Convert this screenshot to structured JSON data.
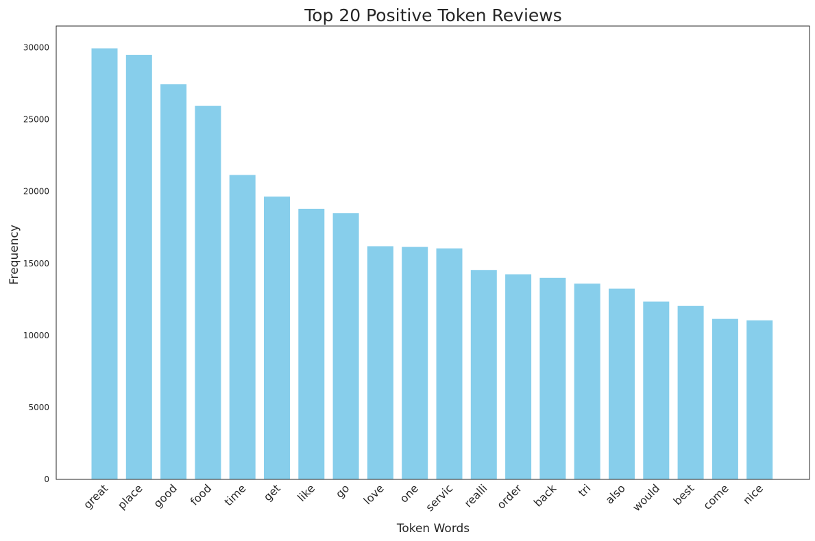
{
  "chart_data": {
    "type": "bar",
    "title": "Top 20 Positive Token Reviews",
    "xlabel": "Token Words",
    "ylabel": "Frequency",
    "categories": [
      "great",
      "place",
      "good",
      "food",
      "time",
      "get",
      "like",
      "go",
      "love",
      "one",
      "servic",
      "realli",
      "order",
      "back",
      "tri",
      "also",
      "would",
      "best",
      "come",
      "nice"
    ],
    "values": [
      29950,
      29500,
      27450,
      25950,
      21150,
      19650,
      18800,
      18500,
      16200,
      16150,
      16050,
      14550,
      14250,
      14000,
      13600,
      13250,
      12350,
      12050,
      11150,
      11050
    ],
    "ylim": [
      0,
      31500
    ],
    "yticks": [
      0,
      5000,
      10000,
      15000,
      20000,
      25000,
      30000
    ],
    "bar_color": "#87ceeb",
    "grid": false,
    "legend": false
  }
}
